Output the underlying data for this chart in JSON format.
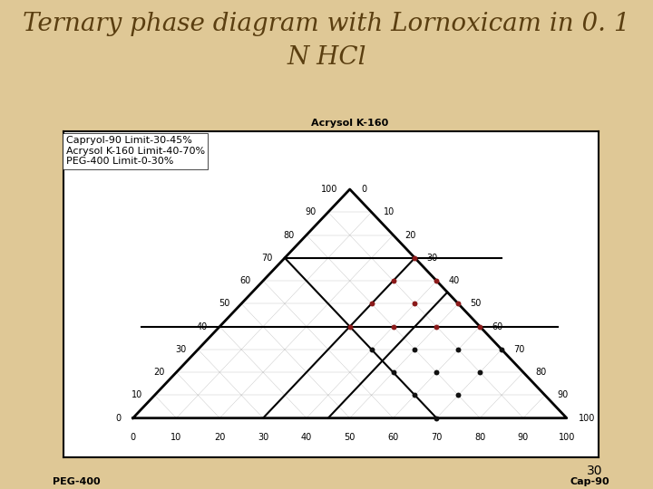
{
  "title_line1": "Ternary phase diagram with Lornoxicam in 0. 1",
  "title_line2": "N HCl",
  "background_color": "#dfc896",
  "plot_bg": "#ffffff",
  "label_top": "Acrysol K-160",
  "label_left": "PEG-400",
  "label_right": "Cap-90",
  "legend_lines": [
    "Capryol-90 Limit-30-45%",
    "Acrysol K-160 Limit-40-70%",
    "PEG-400 Limit-0-30%"
  ],
  "page_number": "30",
  "title_color": "#5a3e10",
  "title_fontsize": 20,
  "dot_color_red": "#8b1a1a",
  "dot_color_black": "#111111",
  "tick_fs": 7,
  "label_fs": 8,
  "legend_fs": 8
}
